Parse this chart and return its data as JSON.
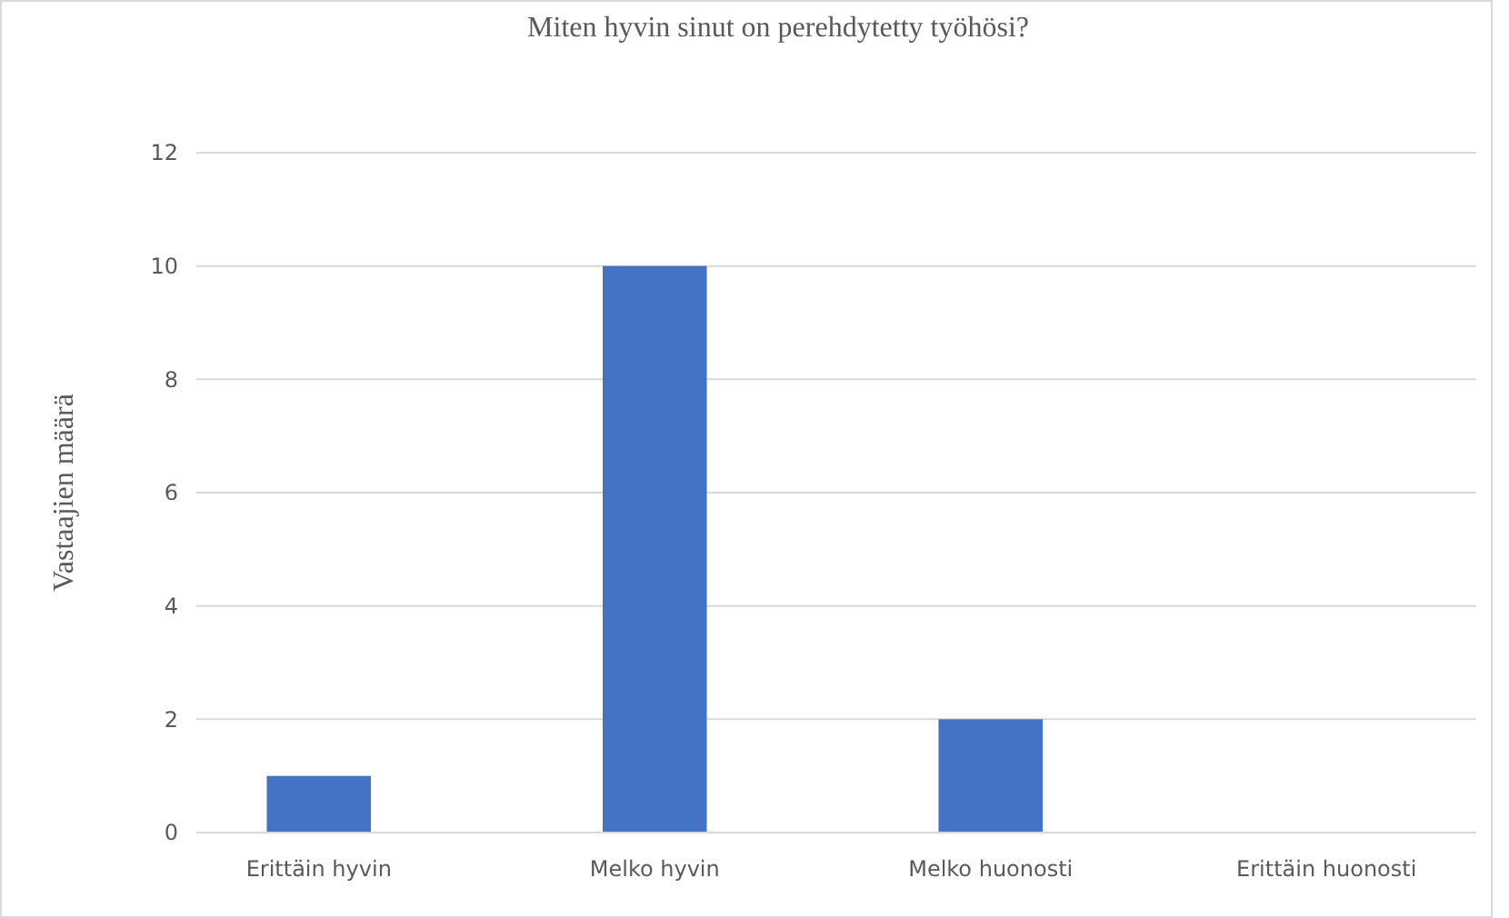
{
  "chart_data": {
    "type": "bar",
    "title": "Miten hyvin sinut on perehdytetty työhösi?",
    "ylabel": "Vastaajien määrä",
    "categories": [
      "Erittäin hyvin",
      "Melko hyvin",
      "Melko huonosti",
      "Erittäin huonosti"
    ],
    "values": [
      1,
      10,
      2,
      0
    ],
    "color": "#4472c4",
    "ylim": [
      0,
      12
    ],
    "yticks": [
      0,
      2,
      4,
      6,
      8,
      10,
      12
    ],
    "grid": "y"
  }
}
